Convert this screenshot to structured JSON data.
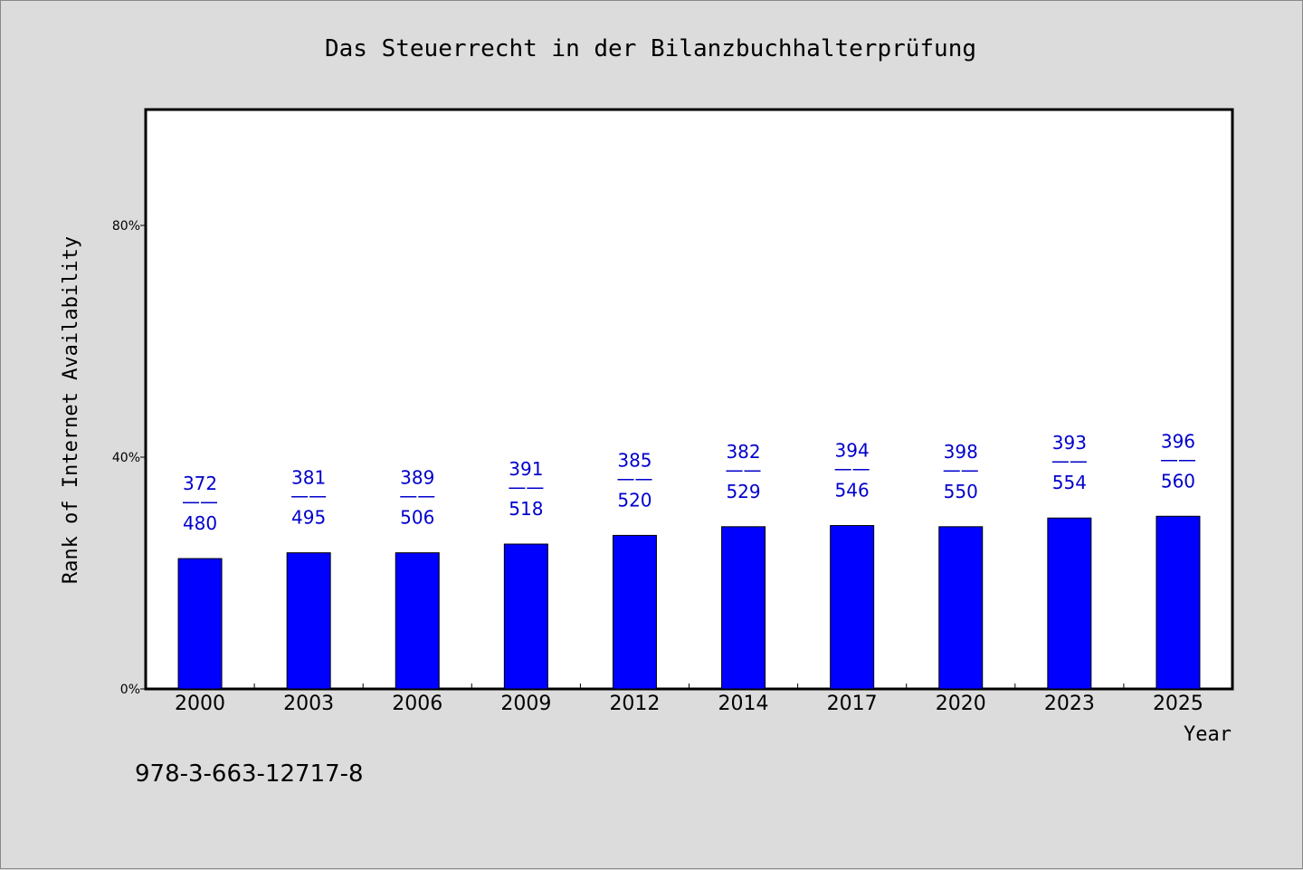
{
  "chart_data": {
    "type": "bar",
    "title": "Das Steuerrecht in der Bilanzbuchhalterprüfung",
    "xlabel": "Year",
    "ylabel": "Rank of Internet Availability",
    "categories": [
      "2000",
      "2003",
      "2006",
      "2009",
      "2012",
      "2014",
      "2017",
      "2020",
      "2023",
      "2025"
    ],
    "values": [
      22.5,
      23.5,
      23.5,
      25,
      26.5,
      28,
      28.2,
      28,
      29.5,
      29.8
    ],
    "value_unit": "%",
    "ylim": [
      0,
      100
    ],
    "yticks": [
      0,
      40,
      80
    ],
    "ytick_labels": [
      "0%",
      "40%",
      "80%"
    ],
    "data_labels": [
      {
        "top": "372",
        "sep": "——",
        "bottom": "480"
      },
      {
        "top": "381",
        "sep": "——",
        "bottom": "495"
      },
      {
        "top": "389",
        "sep": "——",
        "bottom": "506"
      },
      {
        "top": "391",
        "sep": "——",
        "bottom": "518"
      },
      {
        "top": "385",
        "sep": "——",
        "bottom": "520"
      },
      {
        "top": "382",
        "sep": "——",
        "bottom": "529"
      },
      {
        "top": "394",
        "sep": "——",
        "bottom": "546"
      },
      {
        "top": "398",
        "sep": "——",
        "bottom": "550"
      },
      {
        "top": "393",
        "sep": "——",
        "bottom": "554"
      },
      {
        "top": "396",
        "sep": "——",
        "bottom": "560"
      }
    ],
    "bar_color": "#0000ff",
    "label_color": "#0000cc",
    "grid": false
  },
  "footer": {
    "isbn": "978-3-663-12717-8"
  }
}
